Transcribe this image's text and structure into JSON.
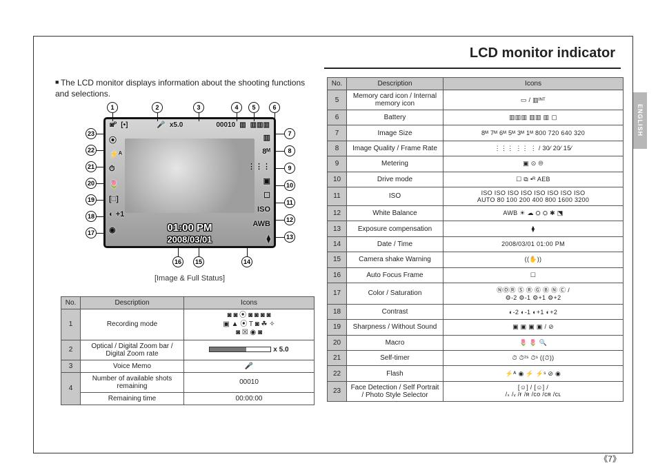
{
  "page": {
    "title": "LCD monitor indicator",
    "intro_text": "The LCD monitor displays information about the shooting functions and selections.",
    "side_tab": "ENGLISH",
    "page_number": "7",
    "diagram_caption": "[Image & Full Status]"
  },
  "lcd": {
    "time": "01:00 PM",
    "date": "2008/03/01",
    "top_zoom": "x5.0",
    "top_counter": "00010",
    "top_bracket": "[•]",
    "left_icons": [
      "⦿",
      "⚡ᴬ",
      "⏱",
      "🌷",
      "[□]",
      "◐ +1",
      "◉"
    ],
    "right_icons": [
      "▥",
      "8ᴹ",
      "⋮⋮⋮",
      "▣",
      "☐",
      "ISO",
      "AWB",
      "⧫"
    ]
  },
  "callouts_top": [
    "1",
    "2",
    "3",
    "4",
    "5",
    "6"
  ],
  "callouts_right": [
    "7",
    "8",
    "9",
    "10",
    "11",
    "12",
    "13"
  ],
  "callouts_bottom": [
    "16",
    "15",
    "14"
  ],
  "callouts_left": [
    "23",
    "22",
    "21",
    "20",
    "19",
    "18",
    "17"
  ],
  "left_table": {
    "headers": [
      "No.",
      "Description",
      "Icons"
    ],
    "rows": [
      {
        "no": "1",
        "desc": "Recording mode",
        "icons": "◙ ◙ ⦿ ◙ ◙ ◙ ◙\n▣ ▲ ⦿ T ◙ ☘ ✧\n◙ ☒ ◉ ◙"
      },
      {
        "no": "2",
        "desc": "Optical / Digital Zoom bar / Digital Zoom rate",
        "icons": "ZOOMBAR x 5.0"
      },
      {
        "no": "3",
        "desc": "Voice Memo",
        "icons": "🎤"
      },
      {
        "no": "4a",
        "desc": "Number of available shots remaining",
        "icons": "00010"
      },
      {
        "no": "4b",
        "desc": "Remaining time",
        "icons": "00:00:00"
      }
    ]
  },
  "right_table": {
    "headers": [
      "No.",
      "Description",
      "Icons"
    ],
    "rows": [
      {
        "no": "5",
        "desc": "Memory card icon / Internal memory icon",
        "icons": "▭ / ▥ᴵᴺᵀ"
      },
      {
        "no": "6",
        "desc": "Battery",
        "icons": "▥▥▥  ▥▥  ▥  ▢"
      },
      {
        "no": "7",
        "desc": "Image Size",
        "icons": "8ᴹ 7ᴹ 6ᴹ 5ᴹ 3ᴹ 1ᴹ 800 720 640 320"
      },
      {
        "no": "8",
        "desc": "Image Quality / Frame Rate",
        "icons": "⋮⋮⋮ ⋮⋮ ⋮  /  30⁄  20⁄  15⁄"
      },
      {
        "no": "9",
        "desc": "Metering",
        "icons": "▣   ⊙   ⦾"
      },
      {
        "no": "10",
        "desc": "Drive mode",
        "icons": "☐   ⧉   •ᴿ   AEB"
      },
      {
        "no": "11",
        "desc": "ISO",
        "icons": "ISO ISO ISO ISO ISO ISO ISO ISO\nAUTO 80 100 200 400 800 1600 3200"
      },
      {
        "no": "12",
        "desc": "White Balance",
        "icons": "AWB ☀ ☁ ⛭ ⛭ ✱ ⬔"
      },
      {
        "no": "13",
        "desc": "Exposure compensation",
        "icons": "⧫"
      },
      {
        "no": "14",
        "desc": "Date / Time",
        "icons": "2008/03/01  01:00 PM"
      },
      {
        "no": "15",
        "desc": "Camera shake Warning",
        "icons": "((✋))"
      },
      {
        "no": "16",
        "desc": "Auto Focus Frame",
        "icons": "☐"
      },
      {
        "no": "17",
        "desc": "Color / Saturation",
        "icons": "ⓃⓄⓇ Ⓢ Ⓡ Ⓖ Ⓑ Ⓝ Ⓒ /\n⚙-2 ⚙-1 ⚙+1 ⚙+2"
      },
      {
        "no": "18",
        "desc": "Contrast",
        "icons": "◐-2 ◐-1 ◐+1 ◐+2"
      },
      {
        "no": "19",
        "desc": "Sharpness / Without Sound",
        "icons": "▣ ▣ ▣ ▣ / ⊘"
      },
      {
        "no": "20",
        "desc": "Macro",
        "icons": "🌷 🌷 🔍"
      },
      {
        "no": "21",
        "desc": "Self-timer",
        "icons": "⏱  ⏱²ˢ  ⏱ˢ  ((⏱))"
      },
      {
        "no": "22",
        "desc": "Flash",
        "icons": "⚡ᴬ  ◉  ⚡  ⚡ˢ  ⊘  ◉"
      },
      {
        "no": "23",
        "desc": "Face Detection / Self Portrait / Photo Style Selector",
        "icons": "[☺] / [☺] /\n/ₛ /ᵥ /ғ /ʀ /ᴄᴏ /ᴄʀ /ᴄʟ"
      }
    ]
  },
  "style": {
    "page_bg": "#ffffff",
    "table_header_bg": "#c8c8c8",
    "border_color": "#555555",
    "side_tab_bg": "#b7b7b7"
  }
}
